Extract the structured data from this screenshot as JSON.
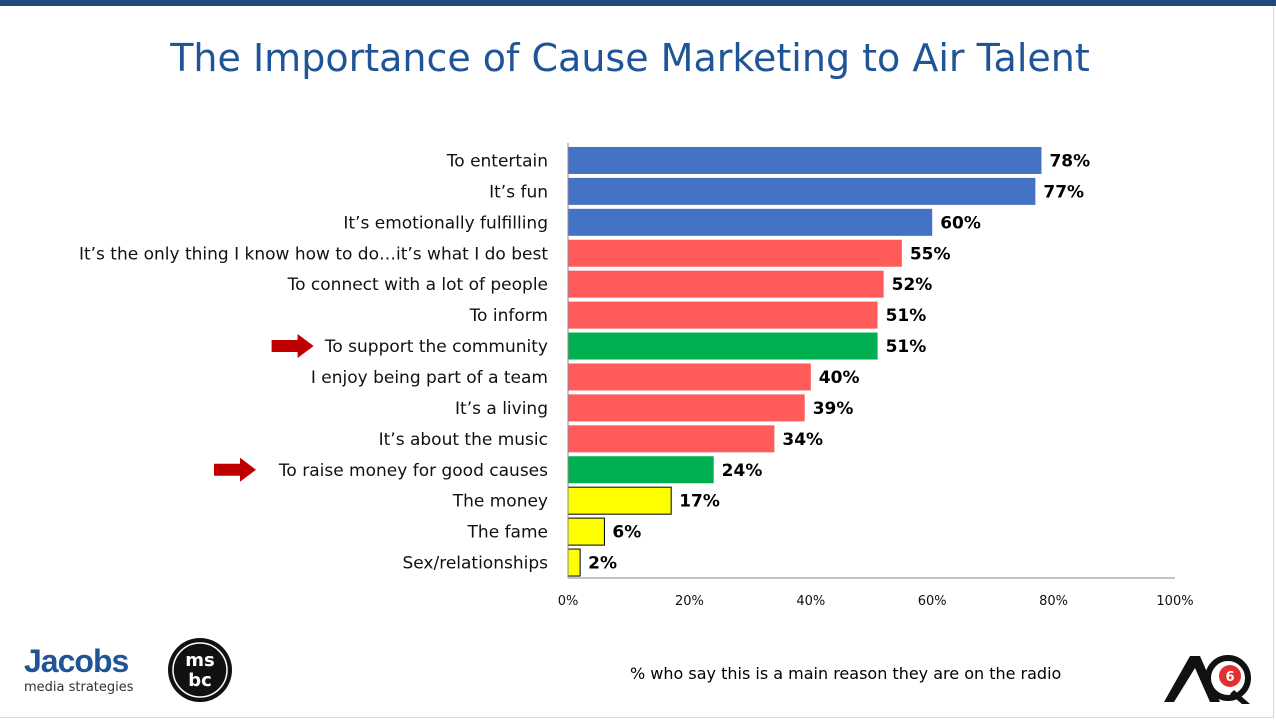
{
  "title": "The Importance of Cause Marketing to Air Talent",
  "footnote": "% who say this is a main reason they are on the radio",
  "logos": {
    "jacobs_word": "Jacobs",
    "jacobs_sub": "media strategies",
    "msbc_text": "MSBC",
    "aq_text": "AQ6"
  },
  "colors": {
    "blue": "#4472c4",
    "red": "#ff5b5b",
    "green": "#00b050",
    "yellow": "#ffff00",
    "arrow": "#c00000",
    "title": "#1f5597"
  },
  "chart_data": {
    "type": "bar",
    "orientation": "horizontal",
    "categories": [
      "To entertain",
      "It’s fun",
      "It’s emotionally fulfilling",
      "It’s the only thing I know how to do…it’s what I do best",
      "To connect with a lot of people",
      "To inform",
      "To support the community",
      "I enjoy being part of a team",
      "It’s a living",
      "It’s about the music",
      "To raise money for good causes",
      "The money",
      "The fame",
      "Sex/relationships"
    ],
    "values": [
      78,
      77,
      60,
      55,
      52,
      51,
      51,
      40,
      39,
      34,
      24,
      17,
      6,
      2
    ],
    "data_labels": [
      "78%",
      "77%",
      "60%",
      "55%",
      "52%",
      "51%",
      "51%",
      "40%",
      "39%",
      "34%",
      "24%",
      "17%",
      "6%",
      "2%"
    ],
    "bar_colors": [
      "blue",
      "blue",
      "blue",
      "red",
      "red",
      "red",
      "green",
      "red",
      "red",
      "red",
      "green",
      "yellow",
      "yellow",
      "yellow"
    ],
    "highlighted": [
      false,
      false,
      false,
      false,
      false,
      false,
      true,
      false,
      false,
      false,
      true,
      false,
      false,
      false
    ],
    "xlim": [
      0,
      100
    ],
    "xticks": [
      0,
      20,
      40,
      60,
      80,
      100
    ],
    "xtick_labels": [
      "0%",
      "20%",
      "40%",
      "60%",
      "80%",
      "100%"
    ],
    "grid": false,
    "legend": "none"
  }
}
